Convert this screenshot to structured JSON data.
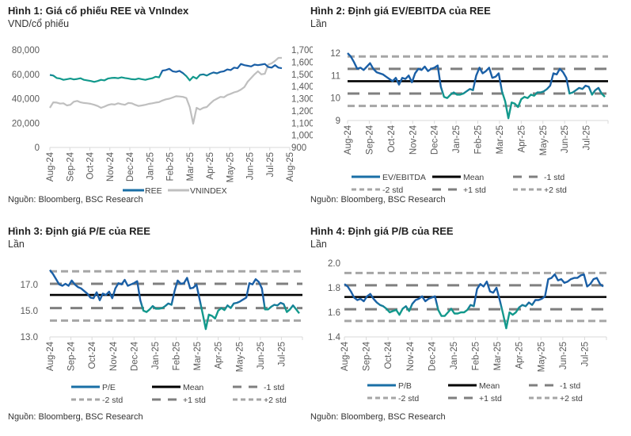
{
  "colors": {
    "blue": "#1a5fa6",
    "teal": "#12998c",
    "gray_line": "#bfbfbf",
    "mean": "#000000",
    "std1": "#7f7f7f",
    "std2": "#a6a6a6",
    "tick": "#595959"
  },
  "chart_data": [
    {
      "id": "fig1",
      "type": "line",
      "title": "Hình 1: Giá cổ phiếu REE và VnIndex",
      "ylabel": "VND/cổ phiếu",
      "source": "Nguồn: Bloomberg, BSC Research",
      "x_ticks": [
        "Aug-24",
        "Sep-24",
        "Oct-24",
        "Nov-24",
        "Dec-24",
        "Jan-25",
        "Feb-25",
        "Mar-25",
        "Apr-25",
        "May-25",
        "Jun-25",
        "Jul-25",
        "Aug-25"
      ],
      "ylim_left": [
        0,
        80000
      ],
      "yticks_left": [
        "80,000",
        "60,000",
        "40,000",
        "20,000",
        "0"
      ],
      "ytick_values_left": [
        80000,
        60000,
        40000,
        20000,
        0
      ],
      "ylim_right": [
        900,
        1700
      ],
      "yticks_right": [
        "1,700",
        "1,600",
        "1,500",
        "1,400",
        "1,300",
        "1,200",
        "1,100",
        "1,000",
        "900"
      ],
      "ytick_values_right": [
        1700,
        1600,
        1500,
        1400,
        1300,
        1200,
        1100,
        1000,
        900
      ],
      "series": [
        {
          "name": "REE",
          "axis": "left",
          "style": "gradient",
          "values": [
            59500,
            59000,
            57000,
            56500,
            55500,
            56000,
            56500,
            55800,
            56200,
            56800,
            55500,
            55000,
            54500,
            53800,
            54500,
            55500,
            55000,
            56500,
            57000,
            57200,
            56800,
            57500,
            57000,
            56500,
            56000,
            55800,
            56500,
            56000,
            55500,
            56200,
            56800,
            58000,
            57500,
            63000,
            63500,
            64500,
            62500,
            62000,
            62800,
            61000,
            58500,
            55000,
            58000,
            56500,
            59500,
            60000,
            59000,
            60500,
            61500,
            60800,
            62000,
            62500,
            64000,
            63500,
            65500,
            65000,
            68500,
            67500,
            67000,
            66500,
            68000,
            67500,
            68000,
            68500,
            66000,
            65500,
            67500,
            65500,
            65000
          ]
        },
        {
          "name": "VNINDEX",
          "axis": "right",
          "style": "gray",
          "values": [
            1225,
            1270,
            1268,
            1260,
            1262,
            1245,
            1250,
            1275,
            1282,
            1270,
            1265,
            1262,
            1258,
            1250,
            1240,
            1225,
            1235,
            1248,
            1255,
            1252,
            1262,
            1255,
            1250,
            1265,
            1262,
            1250,
            1240,
            1245,
            1250,
            1258,
            1262,
            1268,
            1272,
            1285,
            1295,
            1300,
            1310,
            1320,
            1318,
            1315,
            1305,
            1230,
            1095,
            1225,
            1210,
            1225,
            1232,
            1260,
            1285,
            1300,
            1315,
            1312,
            1330,
            1340,
            1352,
            1360,
            1375,
            1395,
            1440,
            1470,
            1500,
            1525,
            1500,
            1505,
            1580,
            1590,
            1610,
            1635,
            1635
          ]
        }
      ],
      "legend": [
        "REE",
        "VNINDEX"
      ]
    },
    {
      "id": "fig2",
      "type": "line",
      "title": "Hình 2: Định giá EV/EBITDA của REE",
      "ylabel": "Lần",
      "source": "Nguồn: Bloomberg, BSC Research",
      "x_ticks": [
        "Aug-24",
        "Sep-24",
        "Oct-24",
        "Nov-24",
        "Dec-24",
        "Jan-25",
        "Feb-25",
        "Mar-25",
        "Apr-25",
        "May-25",
        "Jun-25",
        "Jul-25"
      ],
      "ylim": [
        9,
        12
      ],
      "yticks": [
        "12",
        "11",
        "10",
        "9"
      ],
      "ytick_values": [
        12,
        11,
        10,
        9
      ],
      "mean": 10.75,
      "plus1": 11.3,
      "minus1": 10.2,
      "plus2": 11.85,
      "minus2": 9.65,
      "series": [
        {
          "name": "EV/EBITDA",
          "values": [
            12.0,
            11.85,
            11.6,
            11.3,
            11.35,
            11.25,
            11.4,
            11.55,
            11.3,
            11.15,
            11.1,
            11.05,
            10.95,
            10.85,
            10.75,
            10.9,
            10.6,
            10.9,
            10.85,
            11.0,
            10.7,
            11.1,
            11.3,
            11.25,
            11.4,
            11.2,
            11.3,
            11.35,
            11.45,
            10.5,
            10.05,
            10.0,
            10.15,
            10.25,
            10.15,
            10.15,
            10.2,
            10.3,
            10.4,
            10.35,
            11.0,
            11.35,
            11.1,
            11.2,
            11.35,
            10.9,
            10.95,
            11.1,
            10.3,
            9.85,
            9.1,
            9.8,
            9.75,
            9.6,
            9.95,
            10.05,
            10.0,
            10.15,
            10.1,
            10.25,
            10.25,
            10.3,
            10.4,
            10.55,
            11.1,
            11.05,
            11.3,
            11.15,
            10.9,
            10.2,
            10.25,
            10.35,
            10.45,
            10.4,
            10.55,
            10.5,
            10.15,
            10.35,
            10.45,
            10.2,
            10.05
          ]
        }
      ],
      "legend": [
        "EV/EBITDA",
        "Mean",
        "-1 std",
        "-2 std",
        "+1 std",
        "+2 std"
      ]
    },
    {
      "id": "fig3",
      "type": "line",
      "title": "Hình 3: Định giá P/E của REE",
      "ylabel": "Lần",
      "source": "Nguồn: Bloomberg, BSC Research",
      "x_ticks": [
        "Aug-24",
        "Sep-24",
        "Oct-24",
        "Nov-24",
        "Dec-24",
        "Jan-25",
        "Feb-25",
        "Mar-25",
        "Apr-25",
        "May-25",
        "Jun-25",
        "Jul-25"
      ],
      "ylim": [
        13,
        18.5
      ],
      "yticks": [
        "17.0",
        "15.0",
        "13.0"
      ],
      "ytick_values": [
        17,
        15,
        13
      ],
      "mean": 16.2,
      "plus1": 17.05,
      "minus1": 15.2,
      "plus2": 18.0,
      "minus2": 14.25,
      "series": [
        {
          "name": "P/E",
          "values": [
            18.1,
            17.8,
            17.4,
            17.0,
            16.9,
            17.05,
            16.9,
            17.3,
            17.0,
            16.8,
            16.7,
            16.5,
            16.3,
            16.0,
            15.95,
            16.4,
            15.8,
            16.3,
            16.2,
            16.45,
            15.95,
            16.7,
            17.1,
            17.0,
            17.35,
            16.9,
            17.0,
            17.1,
            17.25,
            15.8,
            15.0,
            14.9,
            15.1,
            15.35,
            15.15,
            15.15,
            15.2,
            15.35,
            15.55,
            15.45,
            16.5,
            17.3,
            17.05,
            17.1,
            17.5,
            16.7,
            16.75,
            17.0,
            15.9,
            14.8,
            13.6,
            14.7,
            14.6,
            14.4,
            15.0,
            15.2,
            15.05,
            15.4,
            15.2,
            15.55,
            15.6,
            15.7,
            15.85,
            16.0,
            17.1,
            17.0,
            17.4,
            17.2,
            16.7,
            15.1,
            15.1,
            15.3,
            15.45,
            15.4,
            15.6,
            15.5,
            14.9,
            15.1,
            15.4,
            15.1,
            14.8
          ]
        }
      ],
      "legend": [
        "P/E",
        "Mean",
        "-1 std",
        "-2 std",
        "+1 std",
        "+2 std"
      ]
    },
    {
      "id": "fig4",
      "type": "line",
      "title": "Hình 4: Định giá P/B của REE",
      "ylabel": "Lần",
      "source": "Nguồn: Bloomberg, BSC Research",
      "x_ticks": [
        "Aug-24",
        "Sep-24",
        "Oct-24",
        "Nov-24",
        "Dec-24",
        "Jan-25",
        "Feb-25",
        "Mar-25",
        "Apr-25",
        "May-25",
        "Jun-25",
        "Jul-25"
      ],
      "ylim": [
        1.4,
        2.0
      ],
      "yticks": [
        "2.0",
        "1.8",
        "1.6",
        "1.4"
      ],
      "ytick_values": [
        2.0,
        1.8,
        1.6,
        1.4
      ],
      "mean": 1.725,
      "plus1": 1.82,
      "minus1": 1.625,
      "plus2": 1.92,
      "minus2": 1.53,
      "series": [
        {
          "name": "P/B",
          "values": [
            1.83,
            1.81,
            1.77,
            1.72,
            1.7,
            1.71,
            1.69,
            1.73,
            1.75,
            1.71,
            1.68,
            1.66,
            1.65,
            1.63,
            1.6,
            1.61,
            1.62,
            1.58,
            1.63,
            1.65,
            1.61,
            1.67,
            1.7,
            1.71,
            1.73,
            1.69,
            1.71,
            1.72,
            1.73,
            1.62,
            1.57,
            1.57,
            1.6,
            1.63,
            1.59,
            1.59,
            1.6,
            1.6,
            1.62,
            1.66,
            1.65,
            1.79,
            1.83,
            1.81,
            1.85,
            1.77,
            1.76,
            1.8,
            1.7,
            1.59,
            1.47,
            1.6,
            1.58,
            1.6,
            1.64,
            1.66,
            1.65,
            1.68,
            1.66,
            1.7,
            1.7,
            1.71,
            1.73,
            1.87,
            1.88,
            1.91,
            1.86,
            1.87,
            1.84,
            1.85,
            1.87,
            1.88,
            1.88,
            1.9,
            1.91,
            1.81,
            1.83,
            1.87,
            1.88,
            1.83,
            1.81
          ]
        }
      ],
      "legend": [
        "P/B",
        "Mean",
        "-1 std",
        "-2 std",
        "+1 std",
        "+2 std"
      ]
    }
  ]
}
